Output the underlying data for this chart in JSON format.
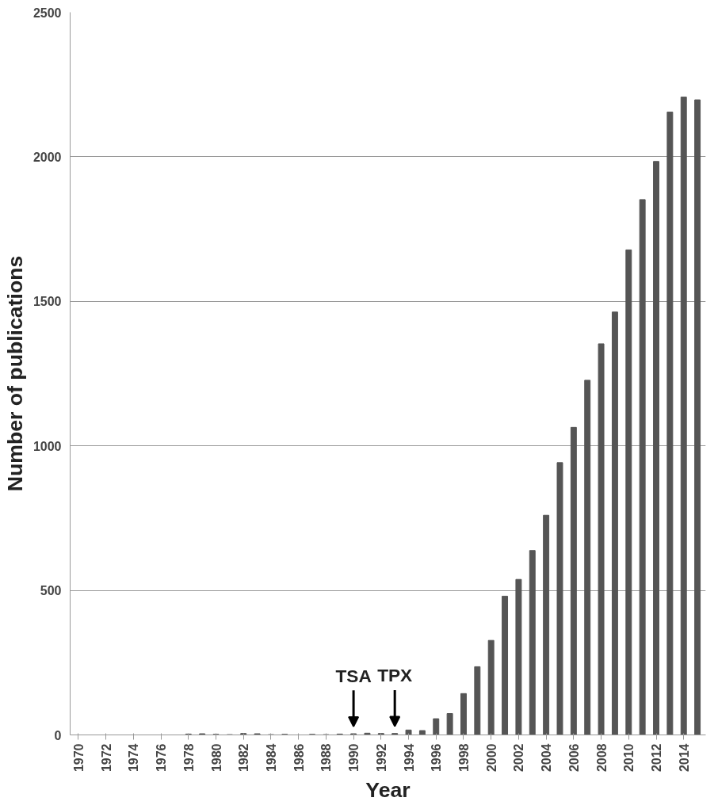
{
  "chart_data": {
    "type": "bar",
    "xlabel": "Year",
    "ylabel": "Number of publications",
    "x": [
      1970,
      1971,
      1972,
      1973,
      1974,
      1975,
      1976,
      1977,
      1978,
      1979,
      1980,
      1981,
      1982,
      1983,
      1984,
      1985,
      1986,
      1987,
      1988,
      1989,
      1990,
      1991,
      1992,
      1993,
      1994,
      1995,
      1996,
      1997,
      1998,
      1999,
      2000,
      2001,
      2002,
      2003,
      2004,
      2005,
      2006,
      2007,
      2008,
      2009,
      2010,
      2011,
      2012,
      2013,
      2014,
      2015
    ],
    "values": [
      0,
      0,
      0,
      0,
      0,
      0,
      0,
      0,
      3,
      4,
      2,
      1,
      5,
      4,
      1,
      2,
      0,
      2,
      1,
      3,
      4,
      6,
      5,
      5,
      17,
      15,
      56,
      74,
      143,
      236,
      327,
      480,
      538,
      638,
      760,
      942,
      1064,
      1227,
      1353,
      1463,
      1678,
      1852,
      1984,
      2155,
      2207,
      2197
    ],
    "color": "#555555",
    "xlim": [
      1969.4,
      2015.6
    ],
    "xticks": [
      1970,
      1972,
      1974,
      1976,
      1978,
      1980,
      1982,
      1984,
      1986,
      1988,
      1990,
      1992,
      1994,
      1996,
      1998,
      2000,
      2002,
      2004,
      2006,
      2008,
      2010,
      2012,
      2014
    ],
    "ylim": [
      0,
      2500
    ],
    "yticks": [
      0,
      500,
      1000,
      1500,
      2000,
      2500
    ],
    "grid": "y",
    "annotations": [
      {
        "text": "TSA",
        "x": 1990,
        "y": 4
      },
      {
        "text": "TPX",
        "x": 1993,
        "y": 5
      }
    ]
  }
}
